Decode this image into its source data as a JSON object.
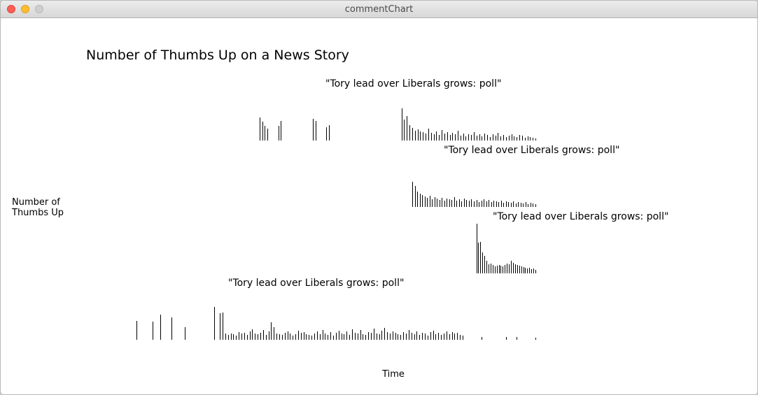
{
  "window": {
    "title": "commentChart"
  },
  "chart_data": {
    "type": "bar",
    "title": "Number of Thumbs Up on a News Story",
    "ylabel_lines": [
      "Number of",
      "Thumbs Up"
    ],
    "xlabel": "Time",
    "grid": false,
    "series": [
      {
        "name": "\"Tory lead over Liberals grows: poll\"",
        "x_start": 0.44,
        "x_end": 1.0,
        "values": [
          33,
          27,
          21,
          17,
          0,
          0,
          0,
          21,
          28,
          0,
          0,
          0,
          0,
          0,
          0,
          0,
          0,
          0,
          0,
          0,
          31,
          28,
          0,
          0,
          0,
          19,
          22,
          0,
          0,
          0,
          0,
          0,
          0,
          0,
          0,
          0,
          0,
          0,
          0,
          0,
          0,
          0,
          0,
          0,
          0,
          0,
          0,
          0,
          0,
          0,
          0,
          0,
          0,
          46,
          30,
          35,
          22,
          18,
          14,
          16,
          13,
          12,
          10,
          17,
          11,
          9,
          13,
          8,
          15,
          10,
          12,
          8,
          11,
          9,
          14,
          7,
          10,
          6,
          9,
          8,
          12,
          7,
          9,
          6,
          10,
          8,
          5,
          9,
          7,
          11,
          6,
          8,
          5,
          7,
          9,
          6,
          5,
          8,
          7,
          4,
          6,
          5,
          4,
          3
        ]
      },
      {
        "name": "\"Tory lead over Liberals grows: poll\"",
        "x_start": 0.75,
        "x_end": 1.0,
        "values": [
          36,
          30,
          22,
          19,
          17,
          15,
          13,
          16,
          11,
          14,
          12,
          10,
          13,
          9,
          12,
          11,
          10,
          14,
          9,
          11,
          8,
          12,
          10,
          9,
          11,
          8,
          10,
          7,
          9,
          11,
          8,
          10,
          7,
          9,
          8,
          7,
          9,
          6,
          8,
          7,
          6,
          8,
          5,
          7,
          6,
          5,
          7,
          4,
          6,
          5,
          4
        ]
      },
      {
        "name": "\"Tory lead over Liberals grows: poll\"",
        "x_start": 0.88,
        "x_end": 1.0,
        "values": [
          71,
          44,
          45,
          30,
          25,
          18,
          13,
          14,
          12,
          10,
          11,
          12,
          11,
          10,
          12,
          14,
          13,
          18,
          15,
          13,
          12,
          11,
          10,
          9,
          8,
          7,
          8,
          6,
          7,
          5
        ]
      },
      {
        "name": "\"Tory lead over Liberals grows: poll\"",
        "x_start": 0.19,
        "x_end": 1.0,
        "values": [
          27,
          0,
          0,
          0,
          0,
          0,
          26,
          0,
          0,
          36,
          0,
          0,
          0,
          32,
          0,
          0,
          0,
          0,
          18,
          0,
          0,
          0,
          0,
          0,
          0,
          0,
          0,
          0,
          0,
          47,
          0,
          38,
          39,
          9,
          7,
          9,
          8,
          6,
          11,
          9,
          10,
          7,
          12,
          15,
          9,
          8,
          10,
          14,
          7,
          12,
          25,
          18,
          9,
          8,
          7,
          10,
          12,
          9,
          6,
          8,
          13,
          10,
          11,
          8,
          7,
          6,
          9,
          12,
          8,
          14,
          9,
          7,
          11,
          6,
          10,
          13,
          9,
          8,
          12,
          7,
          15,
          10,
          9,
          14,
          8,
          7,
          11,
          10,
          16,
          9,
          8,
          13,
          17,
          11,
          9,
          12,
          10,
          8,
          7,
          11,
          9,
          14,
          10,
          8,
          12,
          7,
          10,
          9,
          6,
          11,
          13,
          8,
          10,
          7,
          9,
          12,
          8,
          11,
          9,
          10,
          7,
          6,
          0,
          0,
          0,
          0,
          0,
          0,
          4,
          0,
          0,
          0,
          0,
          0,
          0,
          0,
          0,
          4,
          0,
          0,
          0,
          4,
          0,
          0,
          0,
          0,
          0,
          0,
          3
        ]
      }
    ]
  }
}
